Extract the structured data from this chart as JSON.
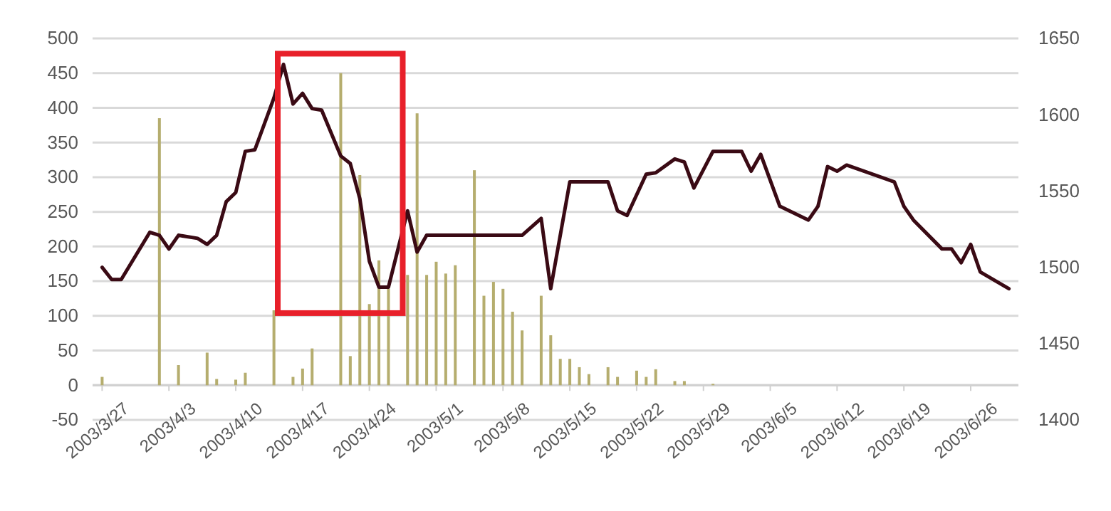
{
  "chart_data": {
    "type": "bar",
    "xlim": [
      "2003-03-26",
      "2003-07-01"
    ],
    "xticks": [
      {
        "value": "2003-03-27",
        "label": "2003/3/27"
      },
      {
        "value": "2003-04-03",
        "label": "2003/4/3"
      },
      {
        "value": "2003-04-10",
        "label": "2003/4/10"
      },
      {
        "value": "2003-04-17",
        "label": "2003/4/17"
      },
      {
        "value": "2003-04-24",
        "label": "2003/4/24"
      },
      {
        "value": "2003-05-01",
        "label": "2003/5/1"
      },
      {
        "value": "2003-05-08",
        "label": "2003/5/8"
      },
      {
        "value": "2003-05-15",
        "label": "2003/5/15"
      },
      {
        "value": "2003-05-22",
        "label": "2003/5/22"
      },
      {
        "value": "2003-05-29",
        "label": "2003/5/29"
      },
      {
        "value": "2003-06-05",
        "label": "2003/6/5"
      },
      {
        "value": "2003-06-12",
        "label": "2003/6/12"
      },
      {
        "value": "2003-06-19",
        "label": "2003/6/19"
      },
      {
        "value": "2003-06-26",
        "label": "2003/6/26"
      }
    ],
    "ylim": [
      -50,
      500
    ],
    "yticks": [
      -50,
      0,
      50,
      100,
      150,
      200,
      250,
      300,
      350,
      400,
      450,
      500
    ],
    "y2lim": [
      1400,
      1650
    ],
    "y2ticks": [
      1400,
      1450,
      1500,
      1550,
      1600,
      1650
    ],
    "grid": "y",
    "series": [
      {
        "color": "#b5ad6e",
        "x": [
          "2003-03-27",
          "2003-04-02",
          "2003-04-04",
          "2003-04-07",
          "2003-04-08",
          "2003-04-10",
          "2003-04-11",
          "2003-04-14",
          "2003-04-16",
          "2003-04-17",
          "2003-04-18",
          "2003-04-21",
          "2003-04-22",
          "2003-04-23",
          "2003-04-24",
          "2003-04-25",
          "2003-04-26",
          "2003-04-28",
          "2003-04-29",
          "2003-04-30",
          "2003-05-01",
          "2003-05-02",
          "2003-05-03",
          "2003-05-05",
          "2003-05-06",
          "2003-05-07",
          "2003-05-08",
          "2003-05-09",
          "2003-05-10",
          "2003-05-12",
          "2003-05-13",
          "2003-05-14",
          "2003-05-15",
          "2003-05-16",
          "2003-05-17",
          "2003-05-19",
          "2003-05-20",
          "2003-05-22",
          "2003-05-23",
          "2003-05-24",
          "2003-05-26",
          "2003-05-27",
          "2003-05-30"
        ],
        "values": [
          12,
          385,
          29,
          47,
          9,
          8,
          18,
          108,
          12,
          24,
          53,
          450,
          42,
          303,
          117,
          180,
          139,
          159,
          392,
          159,
          178,
          161,
          173,
          310,
          129,
          149,
          139,
          106,
          79,
          129,
          72,
          38,
          38,
          26,
          16,
          26,
          12,
          21,
          12,
          23,
          6,
          6,
          2
        ]
      },
      {
        "type": "line",
        "axis": "y2",
        "color": "#3a0a14",
        "x": [
          "2003-03-27",
          "2003-03-28",
          "2003-03-29",
          "2003-04-01",
          "2003-04-02",
          "2003-04-03",
          "2003-04-04",
          "2003-04-06",
          "2003-04-07",
          "2003-04-08",
          "2003-04-09",
          "2003-04-10",
          "2003-04-11",
          "2003-04-12",
          "2003-04-14",
          "2003-04-15",
          "2003-04-16",
          "2003-04-17",
          "2003-04-18",
          "2003-04-19",
          "2003-04-21",
          "2003-04-22",
          "2003-04-23",
          "2003-04-24",
          "2003-04-25",
          "2003-04-26",
          "2003-04-28",
          "2003-04-29",
          "2003-04-30",
          "2003-05-10",
          "2003-05-12",
          "2003-05-13",
          "2003-05-15",
          "2003-05-19",
          "2003-05-20",
          "2003-05-21",
          "2003-05-23",
          "2003-05-24",
          "2003-05-26",
          "2003-05-27",
          "2003-05-28",
          "2003-05-30",
          "2003-06-02",
          "2003-06-03",
          "2003-06-04",
          "2003-06-06",
          "2003-06-09",
          "2003-06-10",
          "2003-06-11",
          "2003-06-12",
          "2003-06-13",
          "2003-06-18",
          "2003-06-19",
          "2003-06-20",
          "2003-06-23",
          "2003-06-24",
          "2003-06-25",
          "2003-06-26",
          "2003-06-27",
          "2003-06-30"
        ],
        "values": [
          1500,
          1492,
          1492,
          1523,
          1521,
          1512,
          1521,
          1519,
          1515,
          1521,
          1543,
          1549,
          1576,
          1577,
          1611,
          1633,
          1607,
          1614,
          1604,
          1603,
          1573,
          1568,
          1545,
          1504,
          1487,
          1487,
          1537,
          1510,
          1521,
          1521,
          1532,
          1486,
          1556,
          1556,
          1537,
          1534,
          1561,
          1562,
          1571,
          1569,
          1552,
          1576,
          1576,
          1563,
          1574,
          1540,
          1531,
          1540,
          1566,
          1563,
          1567,
          1556,
          1540,
          1531,
          1512,
          1512,
          1503,
          1515,
          1497,
          1486
        ]
      }
    ]
  }
}
